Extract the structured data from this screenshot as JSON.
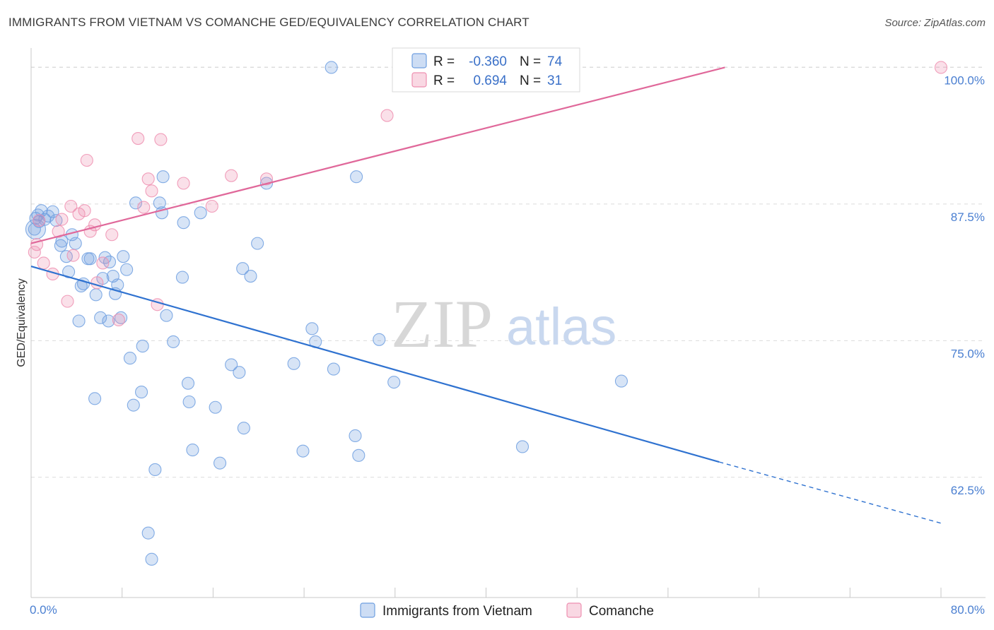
{
  "header": {
    "title": "IMMIGRANTS FROM VIETNAM VS COMANCHE GED/EQUIVALENCY CORRELATION CHART",
    "source": "Source: ZipAtlas.com"
  },
  "watermark": {
    "zip": "ZIP",
    "atlas": "atlas"
  },
  "legend": {
    "rows": [
      {
        "r_label": "R =",
        "r_value": "-0.360",
        "n_label": "N =",
        "n_value": "74",
        "color": "#6f9fe0"
      },
      {
        "r_label": "R =",
        "r_value": "0.694",
        "n_label": "N =",
        "n_value": "31",
        "color": "#ee8fb0"
      }
    ]
  },
  "bottom_legend": [
    {
      "label": "Immigrants from Vietnam",
      "color": "#6f9fe0"
    },
    {
      "label": "Comanche",
      "color": "#ee8fb0"
    }
  ],
  "chart_data": {
    "type": "scatter",
    "xlabel": "",
    "ylabel": "GED/Equivalency",
    "xlim": [
      0,
      80
    ],
    "ylim": [
      51.5,
      101
    ],
    "x_tick_labels": [
      "0.0%",
      "80.0%"
    ],
    "y_ticks": [
      62.5,
      75.0,
      87.5,
      100.0
    ],
    "y_tick_labels": [
      "62.5%",
      "75.0%",
      "87.5%",
      "100.0%"
    ],
    "grid": "horizontal dashed",
    "legend_placement": "top-center",
    "series": [
      {
        "name": "Immigrants from Vietnam",
        "color": "#6f9fe0",
        "trend": {
          "x": [
            0,
            60.5
          ],
          "y": [
            81.8,
            63.9
          ],
          "dashed_to": [
            80,
            58.3
          ]
        },
        "points": [
          [
            0.3,
            85.2
          ],
          [
            0.4,
            86.2
          ],
          [
            0.6,
            86.5
          ],
          [
            0.7,
            85.9
          ],
          [
            0.9,
            86.9
          ],
          [
            1.2,
            86.1
          ],
          [
            1.5,
            86.4
          ],
          [
            1.9,
            86.8
          ],
          [
            2.2,
            86.0
          ],
          [
            2.6,
            83.7
          ],
          [
            2.7,
            84.1
          ],
          [
            3.1,
            82.7
          ],
          [
            3.3,
            81.3
          ],
          [
            3.6,
            84.7
          ],
          [
            3.9,
            83.9
          ],
          [
            4.2,
            76.8
          ],
          [
            4.4,
            80.0
          ],
          [
            4.6,
            80.2
          ],
          [
            5.0,
            82.5
          ],
          [
            5.2,
            82.5
          ],
          [
            5.6,
            69.7
          ],
          [
            5.7,
            79.2
          ],
          [
            6.1,
            77.1
          ],
          [
            6.3,
            80.7
          ],
          [
            6.5,
            82.6
          ],
          [
            6.8,
            76.8
          ],
          [
            6.9,
            82.2
          ],
          [
            7.2,
            80.9
          ],
          [
            7.4,
            79.3
          ],
          [
            7.6,
            80.1
          ],
          [
            7.9,
            77.1
          ],
          [
            8.1,
            82.7
          ],
          [
            8.4,
            81.5
          ],
          [
            8.7,
            73.4
          ],
          [
            9.0,
            69.1
          ],
          [
            9.2,
            87.6
          ],
          [
            9.7,
            70.3
          ],
          [
            9.8,
            74.5
          ],
          [
            10.3,
            57.4
          ],
          [
            10.6,
            55.0
          ],
          [
            10.9,
            63.2
          ],
          [
            11.3,
            87.6
          ],
          [
            11.5,
            86.7
          ],
          [
            11.6,
            90.0
          ],
          [
            11.9,
            77.3
          ],
          [
            12.5,
            74.9
          ],
          [
            13.3,
            80.8
          ],
          [
            13.4,
            85.8
          ],
          [
            13.8,
            71.1
          ],
          [
            13.9,
            69.4
          ],
          [
            14.2,
            65.0
          ],
          [
            14.9,
            86.7
          ],
          [
            16.2,
            68.9
          ],
          [
            16.6,
            63.8
          ],
          [
            17.6,
            72.8
          ],
          [
            18.3,
            72.1
          ],
          [
            18.6,
            81.6
          ],
          [
            18.7,
            67.0
          ],
          [
            19.3,
            80.9
          ],
          [
            19.9,
            83.9
          ],
          [
            20.7,
            89.4
          ],
          [
            23.1,
            72.9
          ],
          [
            23.9,
            64.9
          ],
          [
            24.7,
            76.1
          ],
          [
            25.0,
            74.9
          ],
          [
            26.4,
            100.0
          ],
          [
            26.6,
            72.4
          ],
          [
            28.5,
            66.3
          ],
          [
            28.6,
            90.0
          ],
          [
            28.8,
            64.5
          ],
          [
            30.6,
            75.1
          ],
          [
            31.9,
            71.2
          ],
          [
            43.2,
            65.3
          ],
          [
            51.9,
            71.3
          ]
        ]
      },
      {
        "name": "Comanche",
        "color": "#ee8fb0",
        "trend": {
          "x": [
            0,
            61
          ],
          "y": [
            83.9,
            100.0
          ]
        },
        "points": [
          [
            0.3,
            83.1
          ],
          [
            0.5,
            83.8
          ],
          [
            0.7,
            86.0
          ],
          [
            1.1,
            82.1
          ],
          [
            1.9,
            81.1
          ],
          [
            2.4,
            85.0
          ],
          [
            2.7,
            86.1
          ],
          [
            3.2,
            78.6
          ],
          [
            3.5,
            87.3
          ],
          [
            3.7,
            82.8
          ],
          [
            4.2,
            86.6
          ],
          [
            4.7,
            86.9
          ],
          [
            4.9,
            91.5
          ],
          [
            5.2,
            85.0
          ],
          [
            5.6,
            85.6
          ],
          [
            5.8,
            80.3
          ],
          [
            6.3,
            82.1
          ],
          [
            7.1,
            84.7
          ],
          [
            7.7,
            76.9
          ],
          [
            9.4,
            93.5
          ],
          [
            9.9,
            87.2
          ],
          [
            10.3,
            89.8
          ],
          [
            10.6,
            88.7
          ],
          [
            11.1,
            78.3
          ],
          [
            11.4,
            93.4
          ],
          [
            13.4,
            89.4
          ],
          [
            15.9,
            87.3
          ],
          [
            17.6,
            90.1
          ],
          [
            20.7,
            89.8
          ],
          [
            31.3,
            95.6
          ],
          [
            80.0,
            100.0
          ]
        ]
      }
    ]
  }
}
